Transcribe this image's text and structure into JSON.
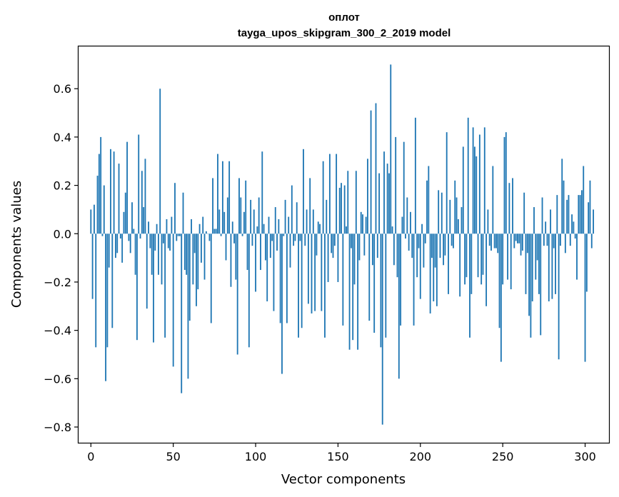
{
  "chart_data": {
    "type": "bar",
    "title": "оплот",
    "subtitle": "tayga_upos_skipgram_300_2_2019 model",
    "xlabel": "Vector components",
    "ylabel": "Components values",
    "xlim": [
      -7.5,
      314.5
    ],
    "ylim": [
      -0.865,
      0.775
    ],
    "xticks": [
      0,
      50,
      100,
      150,
      200,
      250,
      300
    ],
    "yticks": [
      -0.8,
      -0.6,
      -0.4,
      -0.2,
      0.0,
      0.2,
      0.4,
      0.6
    ],
    "ytick_labels": [
      "−0.8",
      "−0.6",
      "−0.4",
      "−0.2",
      "0.0",
      "0.2",
      "0.4",
      "0.6"
    ],
    "bar_color": "#1f77b4",
    "values": [
      0.1,
      -0.27,
      0.12,
      -0.47,
      0.24,
      0.33,
      0.4,
      -0.01,
      0.2,
      -0.61,
      -0.47,
      -0.14,
      0.35,
      -0.39,
      0.34,
      -0.1,
      -0.08,
      0.29,
      -0.02,
      -0.12,
      0.09,
      0.17,
      0.38,
      -0.03,
      -0.08,
      0.13,
      0.02,
      -0.17,
      -0.44,
      0.41,
      -0.02,
      0.26,
      0.11,
      0.31,
      -0.31,
      0.05,
      -0.06,
      -0.17,
      -0.45,
      -0.07,
      0.04,
      -0.17,
      0.6,
      -0.21,
      -0.04,
      -0.43,
      0.06,
      -0.06,
      -0.07,
      0.07,
      -0.55,
      0.21,
      -0.03,
      -0.01,
      -0.01,
      -0.66,
      0.17,
      -0.15,
      -0.17,
      -0.6,
      -0.36,
      0.06,
      -0.21,
      -0.08,
      -0.3,
      -0.23,
      0.04,
      -0.12,
      0.07,
      -0.19,
      0.01,
      0.0,
      -0.03,
      -0.37,
      0.23,
      0.02,
      0.02,
      0.33,
      0.1,
      -0.01,
      0.3,
      0.09,
      -0.11,
      0.15,
      0.3,
      -0.22,
      0.05,
      -0.04,
      -0.19,
      -0.5,
      0.23,
      0.15,
      -0.01,
      0.09,
      0.22,
      -0.15,
      -0.47,
      0.14,
      -0.05,
      0.1,
      -0.24,
      0.03,
      0.15,
      -0.15,
      0.34,
      0.04,
      -0.11,
      -0.28,
      0.07,
      -0.1,
      -0.03,
      -0.32,
      0.11,
      -0.07,
      0.06,
      -0.37,
      -0.58,
      -0.01,
      0.14,
      -0.37,
      0.07,
      -0.14,
      0.2,
      -0.05,
      -0.03,
      0.13,
      -0.43,
      -0.03,
      -0.39,
      0.35,
      -0.05,
      0.1,
      -0.29,
      0.23,
      -0.33,
      0.1,
      -0.32,
      -0.09,
      0.05,
      0.04,
      -0.32,
      0.3,
      -0.43,
      0.14,
      -0.2,
      0.33,
      -0.08,
      -0.1,
      -0.05,
      0.33,
      -0.2,
      0.19,
      0.21,
      -0.38,
      0.2,
      0.03,
      0.26,
      -0.48,
      -0.06,
      -0.44,
      -0.21,
      0.26,
      -0.48,
      -0.11,
      0.09,
      0.08,
      -0.09,
      0.07,
      0.31,
      -0.36,
      0.51,
      -0.13,
      -0.41,
      0.54,
      -0.1,
      0.25,
      -0.47,
      -0.79,
      0.34,
      -0.43,
      0.29,
      0.25,
      0.7,
      0.03,
      -0.13,
      0.4,
      -0.18,
      -0.6,
      -0.38,
      0.07,
      0.38,
      -0.02,
      0.15,
      -0.07,
      0.09,
      -0.1,
      -0.38,
      0.48,
      -0.18,
      -0.06,
      -0.27,
      0.04,
      -0.14,
      -0.04,
      0.22,
      0.28,
      -0.33,
      -0.1,
      -0.28,
      -0.14,
      -0.3,
      0.18,
      -0.1,
      0.17,
      -0.13,
      -0.09,
      0.42,
      -0.25,
      0.14,
      -0.05,
      -0.06,
      0.22,
      0.15,
      0.06,
      -0.26,
      0.11,
      0.36,
      -0.21,
      -0.18,
      0.48,
      -0.43,
      -0.25,
      0.44,
      0.36,
      0.32,
      -0.18,
      0.41,
      -0.21,
      -0.17,
      0.44,
      -0.3,
      0.1,
      -0.05,
      -0.07,
      0.28,
      -0.06,
      -0.06,
      -0.08,
      -0.39,
      -0.53,
      -0.21,
      0.4,
      0.42,
      -0.19,
      0.21,
      -0.23,
      0.23,
      -0.06,
      -0.03,
      -0.04,
      -0.04,
      -0.09,
      -0.07,
      0.17,
      -0.25,
      -0.08,
      -0.34,
      -0.43,
      -0.28,
      0.11,
      -0.19,
      -0.11,
      -0.25,
      -0.42,
      0.15,
      -0.05,
      0.05,
      -0.05,
      -0.28,
      0.1,
      -0.27,
      -0.06,
      -0.25,
      0.16,
      -0.52,
      -0.05,
      0.31,
      0.22,
      -0.08,
      0.14,
      0.16,
      -0.05,
      0.08,
      0.05,
      -0.02,
      -0.19,
      0.16,
      0.16,
      0.18,
      0.28,
      -0.53,
      -0.24,
      0.13,
      0.22,
      -0.06,
      0.1
    ]
  }
}
